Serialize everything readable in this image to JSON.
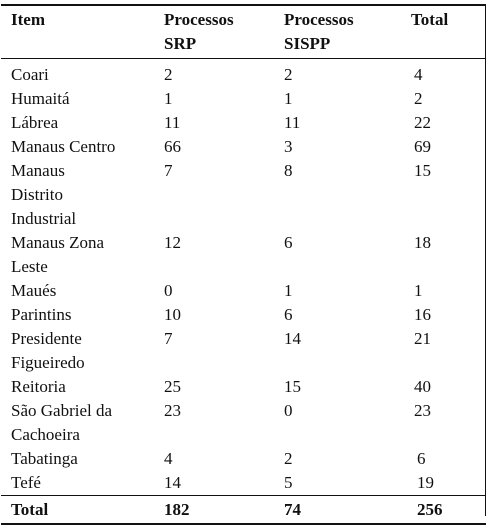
{
  "table": {
    "headers": {
      "item": "Item",
      "srp_line1": "Processos",
      "srp_line2": "SRP",
      "sispp_line1": "Processos",
      "sispp_line2": "SISPP",
      "total": "Total"
    },
    "rows": [
      {
        "item_lines": [
          "Coari"
        ],
        "srp": "2",
        "sispp": "2",
        "total": "4"
      },
      {
        "item_lines": [
          "Humaitá"
        ],
        "srp": "1",
        "sispp": "1",
        "total": "2"
      },
      {
        "item_lines": [
          "Lábrea"
        ],
        "srp": "11",
        "sispp": "11",
        "total": "22"
      },
      {
        "item_lines": [
          "Manaus Centro"
        ],
        "srp": "66",
        "sispp": "3",
        "total": "69"
      },
      {
        "item_lines": [
          "Manaus",
          "Distrito",
          "Industrial"
        ],
        "srp": "7",
        "sispp": "8",
        "total": "15"
      },
      {
        "item_lines": [
          "Manaus Zona",
          "Leste"
        ],
        "srp": "12",
        "sispp": "6",
        "total": "18"
      },
      {
        "item_lines": [
          "Maués"
        ],
        "srp": "0",
        "sispp": "1",
        "total": "1"
      },
      {
        "item_lines": [
          "Parintins"
        ],
        "srp": "10",
        "sispp": "6",
        "total": "16"
      },
      {
        "item_lines": [
          "Presidente",
          "Figueiredo"
        ],
        "srp": "7",
        "sispp": "14",
        "total": "21"
      },
      {
        "item_lines": [
          "Reitoria"
        ],
        "srp": "25",
        "sispp": "15",
        "total": "40"
      },
      {
        "item_lines": [
          "São Gabriel da",
          "Cachoeira"
        ],
        "srp": "23",
        "sispp": "0",
        "total": "23"
      },
      {
        "item_lines": [
          "Tabatinga"
        ],
        "srp": "4",
        "sispp": "2",
        "total": "6"
      },
      {
        "item_lines": [
          "Tefé"
        ],
        "srp": "14",
        "sispp": "5",
        "total": "19"
      }
    ],
    "footer": {
      "label": "Total",
      "srp": "182",
      "sispp": "74",
      "total": "256"
    }
  }
}
